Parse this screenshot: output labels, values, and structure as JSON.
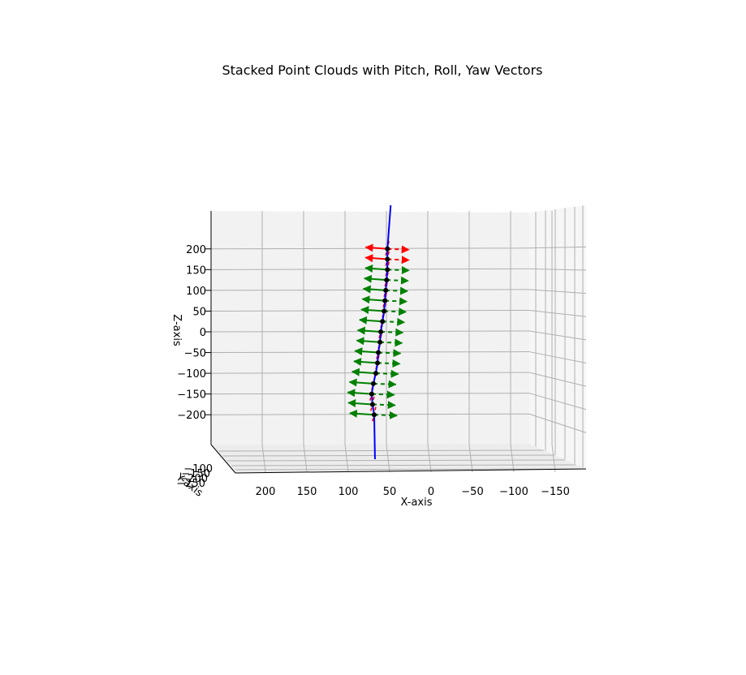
{
  "chart_data": {
    "type": "3d-quiver",
    "title": "Stacked Point Clouds with Pitch, Roll, Yaw Vectors",
    "xlabel": "X-axis",
    "ylabel": "Y-axis",
    "zlabel": "Z-axis",
    "x_ticks": [
      "200",
      "150",
      "100",
      "50",
      "0",
      "−50",
      "−100",
      "−150"
    ],
    "z_ticks": [
      "200",
      "150",
      "100",
      "50",
      "0",
      "−50",
      "−100",
      "−150",
      "−200"
    ],
    "y_ticks": [
      "−100",
      "−150",
      "−200",
      "−250"
    ],
    "xlim": [
      230,
      -190
    ],
    "zlim": [
      -200,
      200
    ],
    "grid": true,
    "colors": {
      "centroid": "#000000",
      "path": "#0000ff",
      "roll": "#ff0000",
      "pitch": "#008000",
      "yaw": "#0000ff",
      "pane": "#f2f2f2",
      "grid": "#b0b0b0"
    },
    "centroids": [
      {
        "x": 52,
        "z": -200
      },
      {
        "x": 54,
        "z": -175
      },
      {
        "x": 55,
        "z": -150
      },
      {
        "x": 53,
        "z": -125
      },
      {
        "x": 50,
        "z": -100
      },
      {
        "x": 48,
        "z": -75
      },
      {
        "x": 47,
        "z": -50
      },
      {
        "x": 45,
        "z": -25
      },
      {
        "x": 44,
        "z": 0
      },
      {
        "x": 42,
        "z": 25
      },
      {
        "x": 40,
        "z": 50
      },
      {
        "x": 39,
        "z": 75
      },
      {
        "x": 38,
        "z": 100
      },
      {
        "x": 37,
        "z": 125
      },
      {
        "x": 36,
        "z": 150
      },
      {
        "x": 36,
        "z": 175
      },
      {
        "x": 36,
        "z": 200
      }
    ]
  }
}
